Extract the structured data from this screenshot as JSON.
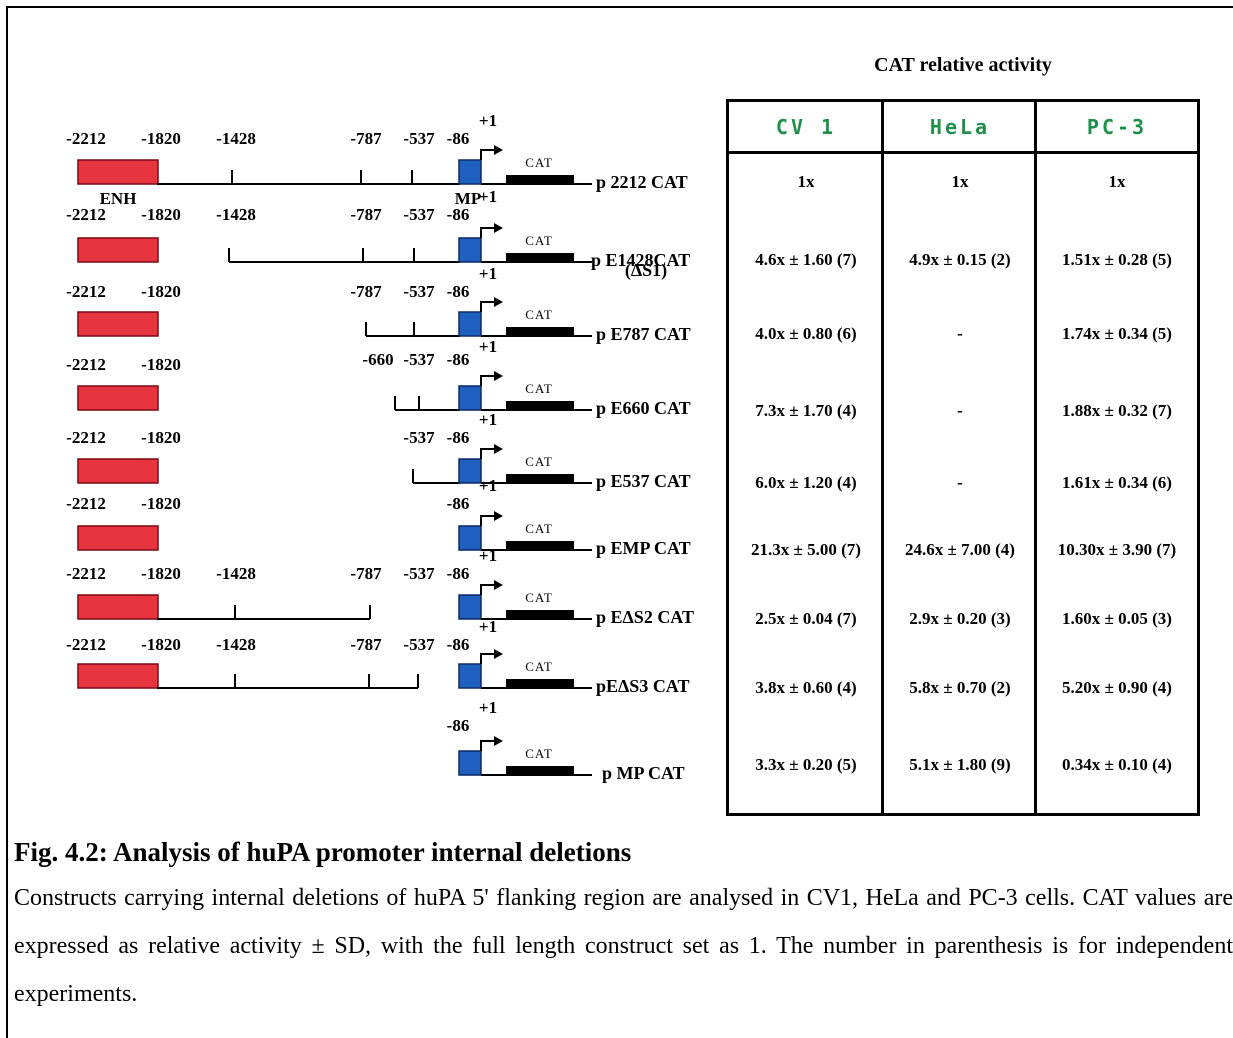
{
  "header": {
    "activity_title": "CAT relative activity"
  },
  "columns": [
    "CV 1",
    "HeLa",
    "PC-3"
  ],
  "constructs": [
    {
      "name": "p 2212 CAT",
      "values": [
        "1x",
        "1x",
        "1x"
      ],
      "labels": [
        "-2212",
        "-1820",
        "-1428",
        "-787",
        "-537",
        "-86",
        "+1"
      ],
      "regions": [
        "ENH",
        "MP"
      ]
    },
    {
      "name": "p E1428CAT",
      "subname": "(ΔS1)",
      "values": [
        "4.6x ± 1.60 (7)",
        "4.9x ± 0.15 (2)",
        "1.51x ± 0.28 (5)"
      ],
      "labels": [
        "-2212",
        "-1820",
        "-1428",
        "-787",
        "-537",
        "-86",
        "+1"
      ]
    },
    {
      "name": "p E787 CAT",
      "values": [
        "4.0x ± 0.80 (6)",
        "-",
        "1.74x ± 0.34 (5)"
      ],
      "labels": [
        "-2212",
        "-1820",
        "-787",
        "-537",
        "-86",
        "+1"
      ]
    },
    {
      "name": "p E660 CAT",
      "values": [
        "7.3x ± 1.70 (4)",
        "-",
        "1.88x ± 0.32 (7)"
      ],
      "labels": [
        "-2212",
        "-1820",
        "-660",
        "-537",
        "-86",
        "+1"
      ]
    },
    {
      "name": "p E537 CAT",
      "values": [
        "6.0x ± 1.20 (4)",
        "-",
        "1.61x ± 0.34 (6)"
      ],
      "labels": [
        "-2212",
        "-1820",
        "-537",
        "-86",
        "+1"
      ]
    },
    {
      "name": "p EMP CAT",
      "values": [
        "21.3x ± 5.00 (7)",
        "24.6x ± 7.00 (4)",
        "10.30x ± 3.90 (7)"
      ],
      "labels": [
        "-2212",
        "-1820",
        "-86",
        "+1"
      ]
    },
    {
      "name": "p EΔS2 CAT",
      "values": [
        "2.5x ± 0.04 (7)",
        "2.9x ± 0.20 (3)",
        "1.60x ± 0.05 (3)"
      ],
      "labels": [
        "-2212",
        "-1820",
        "-1428",
        "-787",
        "-537",
        "-86",
        "+1"
      ]
    },
    {
      "name": "pEΔS3 CAT",
      "values": [
        "3.8x ± 0.60 (4)",
        "5.8x ± 0.70 (2)",
        "5.20x ± 0.90 (4)"
      ],
      "labels": [
        "-2212",
        "-1820",
        "-1428",
        "-787",
        "-537",
        "-86",
        "+1"
      ]
    },
    {
      "name": "p MP CAT",
      "values": [
        "3.3x ± 0.20 (5)",
        "5.1x ± 1.80 (9)",
        "0.34x ± 0.10 (4)"
      ],
      "labels": [
        "-86",
        "+1"
      ]
    }
  ],
  "reporter_label": "CAT",
  "caption": {
    "title": "Fig. 4.2: Analysis of huPA promoter internal deletions",
    "text": "Constructs carrying internal deletions of huPA 5' flanking region are analysed in CV1, HeLa and PC-3 cells. CAT values are expressed as relative activity ± SD, with the full length construct set as 1. The number in parenthesis is for independent experiments."
  },
  "colors": {
    "enhancer": "#e8343f",
    "promoter": "#1f5fbf",
    "column_header": "#1f8f4a"
  }
}
